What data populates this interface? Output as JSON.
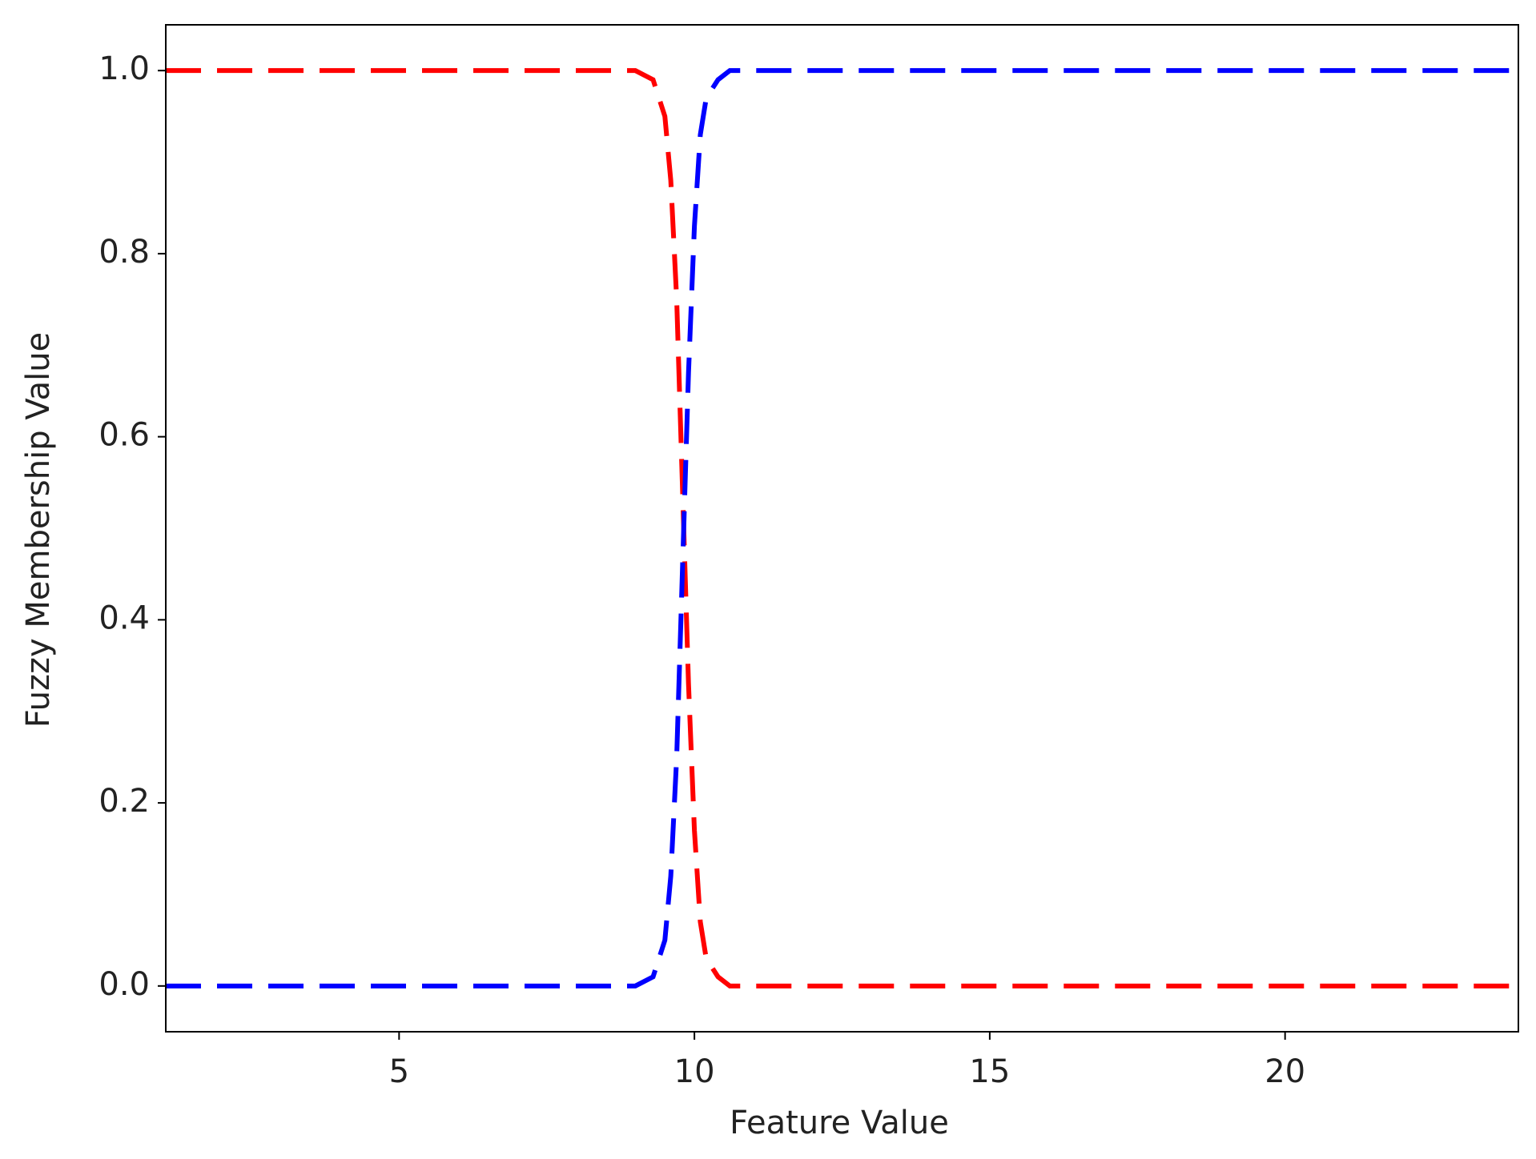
{
  "chart_data": {
    "type": "line",
    "xlabel": "Feature Value",
    "ylabel": "Fuzzy Membership Value",
    "x": [
      1.05,
      3,
      5,
      7,
      9,
      9.3,
      9.5,
      9.6,
      9.7,
      9.8,
      9.9,
      10,
      10.1,
      10.2,
      10.4,
      10.6,
      12,
      15,
      20,
      23.95
    ],
    "series": [
      {
        "color": "#ff0000",
        "dashed": true,
        "values": [
          1,
          1,
          1,
          1,
          1,
          0.99,
          0.95,
          0.88,
          0.75,
          0.54,
          0.33,
          0.17,
          0.07,
          0.03,
          0.01,
          0,
          0,
          0,
          0,
          0
        ]
      },
      {
        "color": "#0000ff",
        "dashed": true,
        "values": [
          0,
          0,
          0,
          0,
          0,
          0.01,
          0.05,
          0.12,
          0.25,
          0.46,
          0.67,
          0.83,
          0.93,
          0.97,
          0.99,
          1,
          1,
          1,
          1,
          1
        ]
      }
    ],
    "xlim": [
      1.05,
      23.95
    ],
    "xticks": [
      5,
      10,
      15,
      20
    ],
    "ylim": [
      -0.05,
      1.05
    ],
    "yticks": [
      {
        "value": 0,
        "label": "0.0"
      },
      {
        "value": 0.2,
        "label": "0.2"
      },
      {
        "value": 0.4,
        "label": "0.4"
      },
      {
        "value": 0.6,
        "label": "0.6"
      },
      {
        "value": 0.8,
        "label": "0.8"
      },
      {
        "value": 1,
        "label": "1.0"
      }
    ],
    "grid": false
  }
}
